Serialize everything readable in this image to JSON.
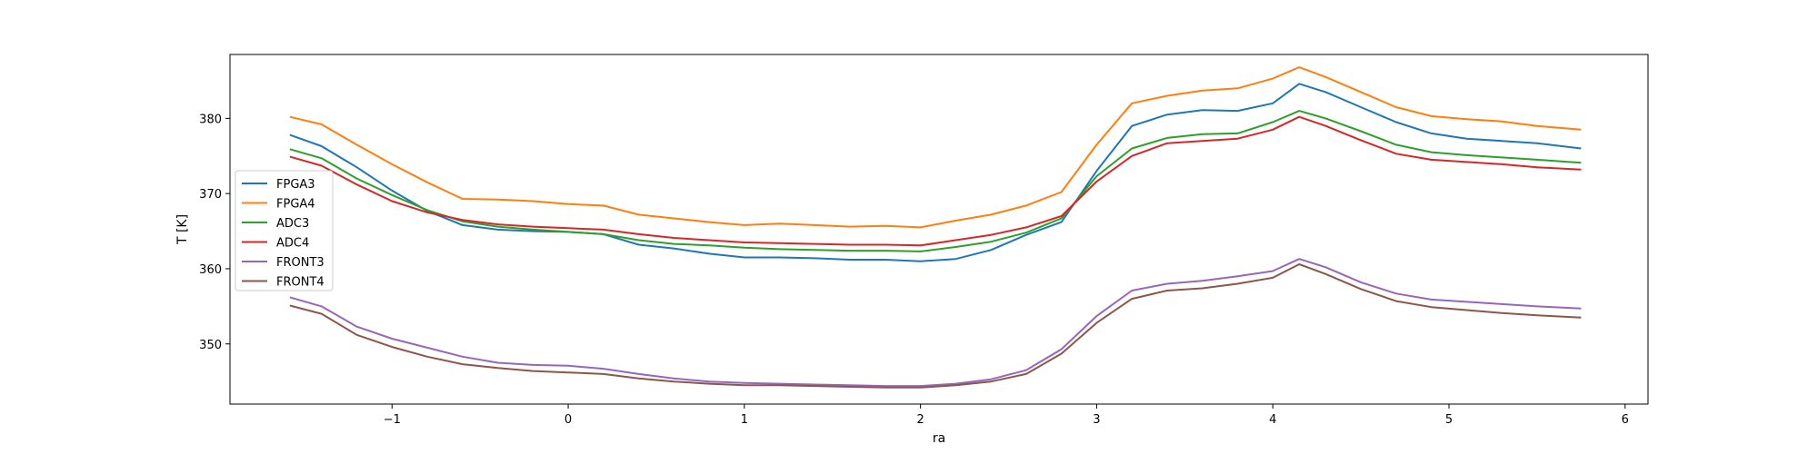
{
  "chart_data": {
    "type": "line",
    "title": "",
    "xlabel": "ra",
    "ylabel": "T [K]",
    "xlim": [
      -1.92,
      6.13
    ],
    "ylim": [
      342.0,
      388.5
    ],
    "x_ticks": [
      -1,
      0,
      1,
      2,
      3,
      4,
      5,
      6
    ],
    "x_tick_labels": [
      "−1",
      "0",
      "1",
      "2",
      "3",
      "4",
      "5",
      "6"
    ],
    "y_ticks": [
      350,
      360,
      370,
      380
    ],
    "y_tick_labels": [
      "350",
      "360",
      "370",
      "380"
    ],
    "grid": false,
    "legend_position": "left-center",
    "x": [
      -1.58,
      -1.4,
      -1.2,
      -1.0,
      -0.8,
      -0.6,
      -0.4,
      -0.2,
      0.0,
      0.2,
      0.4,
      0.6,
      0.8,
      1.0,
      1.2,
      1.4,
      1.6,
      1.8,
      2.0,
      2.2,
      2.4,
      2.6,
      2.8,
      3.0,
      3.2,
      3.4,
      3.6,
      3.8,
      4.0,
      4.15,
      4.3,
      4.5,
      4.7,
      4.9,
      5.1,
      5.3,
      5.5,
      5.75
    ],
    "series": [
      {
        "name": "FPGA3",
        "color": "#1f77b4",
        "values": [
          377.8,
          376.3,
          373.5,
          370.4,
          367.7,
          365.8,
          365.2,
          365.0,
          364.9,
          364.6,
          363.2,
          362.7,
          362.0,
          361.5,
          361.5,
          361.4,
          361.2,
          361.2,
          361.0,
          361.3,
          362.5,
          364.5,
          366.2,
          373.0,
          379.0,
          380.5,
          381.1,
          381.0,
          382.0,
          384.6,
          383.5,
          381.5,
          379.5,
          378.0,
          377.3,
          377.0,
          376.7,
          376.0
        ]
      },
      {
        "name": "FPGA4",
        "color": "#ff7f0e",
        "values": [
          380.2,
          379.2,
          376.5,
          373.9,
          371.5,
          369.3,
          369.2,
          369.0,
          368.6,
          368.4,
          367.2,
          366.7,
          366.2,
          365.8,
          366.0,
          365.8,
          365.6,
          365.7,
          365.5,
          366.4,
          367.2,
          368.4,
          370.2,
          376.5,
          382.0,
          383.0,
          383.7,
          384.0,
          385.3,
          386.8,
          385.5,
          383.5,
          381.5,
          380.3,
          379.9,
          379.6,
          379.0,
          378.5
        ]
      },
      {
        "name": "ADC3",
        "color": "#2ca02c",
        "values": [
          375.9,
          374.7,
          372.0,
          369.8,
          367.8,
          366.3,
          365.6,
          365.2,
          364.9,
          364.6,
          363.8,
          363.3,
          363.1,
          362.8,
          362.6,
          362.5,
          362.4,
          362.4,
          362.3,
          362.9,
          363.6,
          364.8,
          366.7,
          372.3,
          376.0,
          377.4,
          377.9,
          378.0,
          379.5,
          381.0,
          380.0,
          378.3,
          376.5,
          375.5,
          375.1,
          374.8,
          374.5,
          374.1
        ]
      },
      {
        "name": "ADC4",
        "color": "#d62728",
        "values": [
          374.9,
          373.7,
          371.2,
          369.0,
          367.5,
          366.5,
          365.9,
          365.6,
          365.4,
          365.2,
          364.6,
          364.1,
          363.8,
          363.5,
          363.4,
          363.3,
          363.2,
          363.2,
          363.1,
          363.8,
          364.5,
          365.5,
          367.0,
          371.6,
          375.0,
          376.7,
          377.0,
          377.3,
          378.5,
          380.2,
          379.0,
          377.1,
          375.3,
          374.5,
          374.2,
          373.9,
          373.5,
          373.2
        ]
      },
      {
        "name": "FRONT3",
        "color": "#9467bd",
        "values": [
          356.2,
          355.0,
          352.3,
          350.7,
          349.5,
          348.3,
          347.5,
          347.2,
          347.1,
          346.7,
          346.0,
          345.4,
          345.0,
          344.8,
          344.7,
          344.6,
          344.5,
          344.4,
          344.4,
          344.7,
          345.3,
          346.5,
          349.3,
          353.7,
          357.1,
          358.0,
          358.4,
          359.0,
          359.7,
          361.3,
          360.2,
          358.2,
          356.7,
          355.9,
          355.6,
          355.3,
          355.0,
          354.7
        ]
      },
      {
        "name": "FRONT4",
        "color": "#8c564b",
        "values": [
          355.1,
          354.0,
          351.2,
          349.6,
          348.3,
          347.3,
          346.8,
          346.4,
          346.2,
          346.0,
          345.4,
          345.0,
          344.7,
          344.5,
          344.5,
          344.4,
          344.3,
          344.2,
          344.2,
          344.5,
          345.0,
          346.0,
          348.7,
          352.8,
          356.0,
          357.1,
          357.4,
          358.0,
          358.8,
          360.6,
          359.3,
          357.3,
          355.7,
          354.9,
          354.5,
          354.1,
          353.8,
          353.5
        ]
      }
    ]
  }
}
